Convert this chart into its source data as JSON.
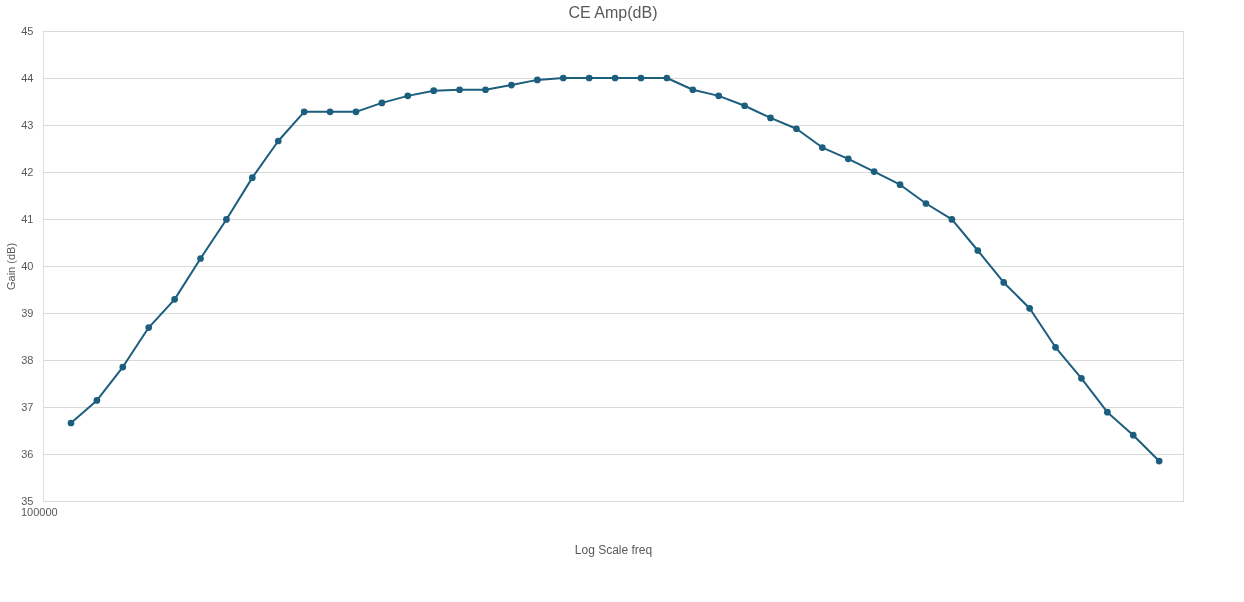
{
  "chart_data": {
    "type": "line",
    "title": "CE Amp(dB)",
    "xlabel": "Log Scale freq",
    "ylabel": "Gain (dB)",
    "categories": [
      null,
      null,
      null,
      null,
      null,
      null,
      null,
      null,
      null,
      null,
      null,
      null,
      null,
      null,
      null,
      null,
      null,
      null,
      null,
      null,
      null,
      null,
      null,
      null,
      null,
      null,
      null,
      null,
      null,
      null,
      null,
      null,
      null,
      null,
      null,
      null,
      null,
      null,
      null,
      null,
      null,
      null,
      null
    ],
    "series": [
      {
        "color": "#1b5e7e",
        "values": [
          36.66,
          37.14,
          37.85,
          38.69,
          39.29,
          40.16,
          40.99,
          41.88,
          42.66,
          43.28,
          43.28,
          43.28,
          43.47,
          43.62,
          43.73,
          43.75,
          43.75,
          43.85,
          43.96,
          44.0,
          44.0,
          44.0,
          44.0,
          44.0,
          43.75,
          43.62,
          43.41,
          43.15,
          42.92,
          42.52,
          42.28,
          42.01,
          41.73,
          41.33,
          40.99,
          40.33,
          39.65,
          39.1,
          38.27,
          37.61,
          36.89,
          36.4,
          35.85
        ]
      }
    ],
    "annotations": [
      "100000"
    ],
    "ylim": [
      35,
      45
    ],
    "yticks": [
      35,
      36,
      37,
      38,
      39,
      40,
      41,
      42,
      43,
      44,
      45
    ],
    "grid": "y",
    "marker": "circle",
    "line_style": "solid"
  }
}
